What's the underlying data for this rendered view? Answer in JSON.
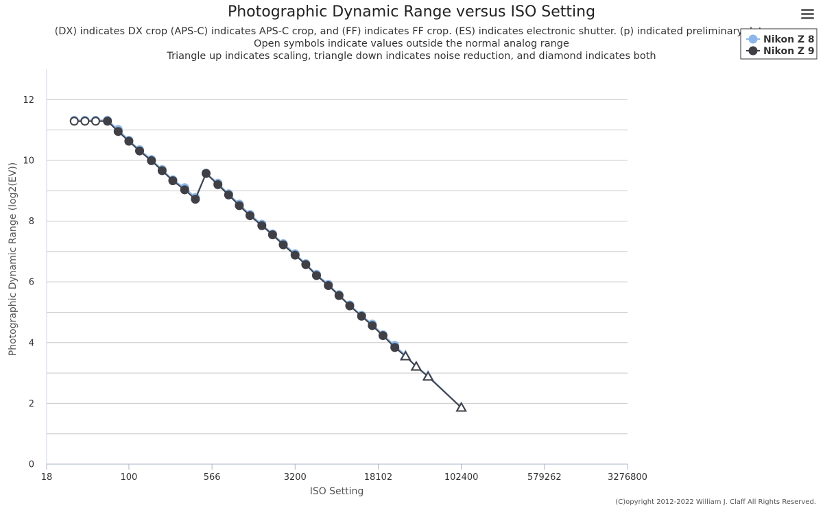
{
  "chart_data": {
    "type": "line",
    "title": "Photographic Dynamic Range versus ISO Setting",
    "subtitle": [
      "(DX) indicates DX crop (APS-C) indicates APS-C crop, and (FF) indicates FF crop. (ES) indicates electronic shutter. (p) indicated preliminary data",
      "Open symbols indicate values outside the normal analog range",
      "Triangle up indicates scaling, triangle down indicates noise reduction, and diamond indicates both"
    ],
    "xlabel": "ISO Setting",
    "ylabel": "Photographic Dynamic Range (log2(EV))",
    "x_scale": "log2",
    "x_range": [
      18,
      3276800
    ],
    "x_ticks": [
      18,
      100,
      566,
      3200,
      18102,
      102400,
      579262,
      3276800
    ],
    "x_tick_labels": [
      "18",
      "100",
      "566",
      "3200",
      "18102",
      "102400",
      "579262",
      "3276800"
    ],
    "y_range": [
      0,
      13
    ],
    "y_ticks": [
      0,
      2,
      4,
      6,
      8,
      10,
      12
    ],
    "grid": true,
    "legend_position": "top-right",
    "legend": [
      "Nikon Z 8",
      "Nikon Z 9"
    ],
    "series": [
      {
        "name": "Nikon Z 8",
        "color": "#8cb7e8",
        "points": [
          {
            "x": 32,
            "y": 11.32,
            "marker": "open-circle"
          },
          {
            "x": 40,
            "y": 11.32,
            "marker": "open-circle"
          },
          {
            "x": 50,
            "y": 11.32,
            "marker": "open-circle"
          },
          {
            "x": 64,
            "y": 11.32,
            "marker": "circle"
          },
          {
            "x": 80,
            "y": 11.02,
            "marker": "circle"
          },
          {
            "x": 100,
            "y": 10.66,
            "marker": "circle"
          },
          {
            "x": 125,
            "y": 10.35,
            "marker": "circle"
          },
          {
            "x": 160,
            "y": 10.03,
            "marker": "circle"
          },
          {
            "x": 200,
            "y": 9.7,
            "marker": "circle"
          },
          {
            "x": 250,
            "y": 9.36,
            "marker": "circle"
          },
          {
            "x": 320,
            "y": 9.1,
            "marker": "circle"
          },
          {
            "x": 400,
            "y": 8.78,
            "marker": "circle"
          },
          {
            "x": 500,
            "y": 9.58,
            "marker": "circle"
          },
          {
            "x": 640,
            "y": 9.25,
            "marker": "circle"
          },
          {
            "x": 800,
            "y": 8.9,
            "marker": "circle"
          },
          {
            "x": 1000,
            "y": 8.56,
            "marker": "circle"
          },
          {
            "x": 1250,
            "y": 8.22,
            "marker": "circle"
          },
          {
            "x": 1600,
            "y": 7.9,
            "marker": "circle"
          },
          {
            "x": 2000,
            "y": 7.58,
            "marker": "circle"
          },
          {
            "x": 2500,
            "y": 7.26,
            "marker": "circle"
          },
          {
            "x": 3200,
            "y": 6.93,
            "marker": "circle"
          },
          {
            "x": 4000,
            "y": 6.6,
            "marker": "circle"
          },
          {
            "x": 5000,
            "y": 6.25,
            "marker": "circle"
          },
          {
            "x": 6400,
            "y": 5.92,
            "marker": "circle"
          },
          {
            "x": 8000,
            "y": 5.58,
            "marker": "circle"
          },
          {
            "x": 10000,
            "y": 5.24,
            "marker": "circle"
          },
          {
            "x": 12800,
            "y": 4.9,
            "marker": "circle"
          },
          {
            "x": 16000,
            "y": 4.61,
            "marker": "circle"
          },
          {
            "x": 20000,
            "y": 4.26,
            "marker": "circle"
          },
          {
            "x": 25600,
            "y": 3.91,
            "marker": "circle"
          },
          {
            "x": 32000,
            "y": 3.58,
            "marker": "triangle-up"
          },
          {
            "x": 40000,
            "y": 3.22,
            "marker": "triangle-up"
          },
          {
            "x": 51200,
            "y": 2.91,
            "marker": "triangle-up"
          },
          {
            "x": 102400,
            "y": 1.87,
            "marker": "triangle-up"
          }
        ]
      },
      {
        "name": "Nikon Z 9",
        "color": "#3f3f45",
        "points": [
          {
            "x": 32,
            "y": 11.29,
            "marker": "open-circle"
          },
          {
            "x": 40,
            "y": 11.29,
            "marker": "open-circle"
          },
          {
            "x": 50,
            "y": 11.29,
            "marker": "open-circle"
          },
          {
            "x": 64,
            "y": 11.29,
            "marker": "circle"
          },
          {
            "x": 80,
            "y": 10.95,
            "marker": "circle"
          },
          {
            "x": 100,
            "y": 10.63,
            "marker": "circle"
          },
          {
            "x": 125,
            "y": 10.31,
            "marker": "circle"
          },
          {
            "x": 160,
            "y": 9.99,
            "marker": "circle"
          },
          {
            "x": 200,
            "y": 9.66,
            "marker": "circle"
          },
          {
            "x": 250,
            "y": 9.33,
            "marker": "circle"
          },
          {
            "x": 320,
            "y": 9.03,
            "marker": "circle"
          },
          {
            "x": 400,
            "y": 8.72,
            "marker": "circle"
          },
          {
            "x": 500,
            "y": 9.57,
            "marker": "circle"
          },
          {
            "x": 640,
            "y": 9.2,
            "marker": "circle"
          },
          {
            "x": 800,
            "y": 8.86,
            "marker": "circle"
          },
          {
            "x": 1000,
            "y": 8.51,
            "marker": "circle"
          },
          {
            "x": 1250,
            "y": 8.18,
            "marker": "circle"
          },
          {
            "x": 1600,
            "y": 7.85,
            "marker": "circle"
          },
          {
            "x": 2000,
            "y": 7.55,
            "marker": "circle"
          },
          {
            "x": 2500,
            "y": 7.22,
            "marker": "circle"
          },
          {
            "x": 3200,
            "y": 6.88,
            "marker": "circle"
          },
          {
            "x": 4000,
            "y": 6.57,
            "marker": "circle"
          },
          {
            "x": 5000,
            "y": 6.21,
            "marker": "circle"
          },
          {
            "x": 6400,
            "y": 5.88,
            "marker": "circle"
          },
          {
            "x": 8000,
            "y": 5.55,
            "marker": "circle"
          },
          {
            "x": 10000,
            "y": 5.21,
            "marker": "circle"
          },
          {
            "x": 12800,
            "y": 4.87,
            "marker": "circle"
          },
          {
            "x": 16000,
            "y": 4.56,
            "marker": "circle"
          },
          {
            "x": 20000,
            "y": 4.23,
            "marker": "circle"
          },
          {
            "x": 25600,
            "y": 3.84,
            "marker": "circle"
          },
          {
            "x": 32000,
            "y": 3.55,
            "marker": "triangle-up"
          },
          {
            "x": 40000,
            "y": 3.21,
            "marker": "triangle-up"
          },
          {
            "x": 51200,
            "y": 2.88,
            "marker": "triangle-up"
          },
          {
            "x": 102400,
            "y": 1.86,
            "marker": "triangle-up"
          }
        ]
      }
    ]
  },
  "credits": "(C)opyright 2012-2022 William J. Claff All Rights Reserved.",
  "menu_icon": "hamburger-menu-icon"
}
